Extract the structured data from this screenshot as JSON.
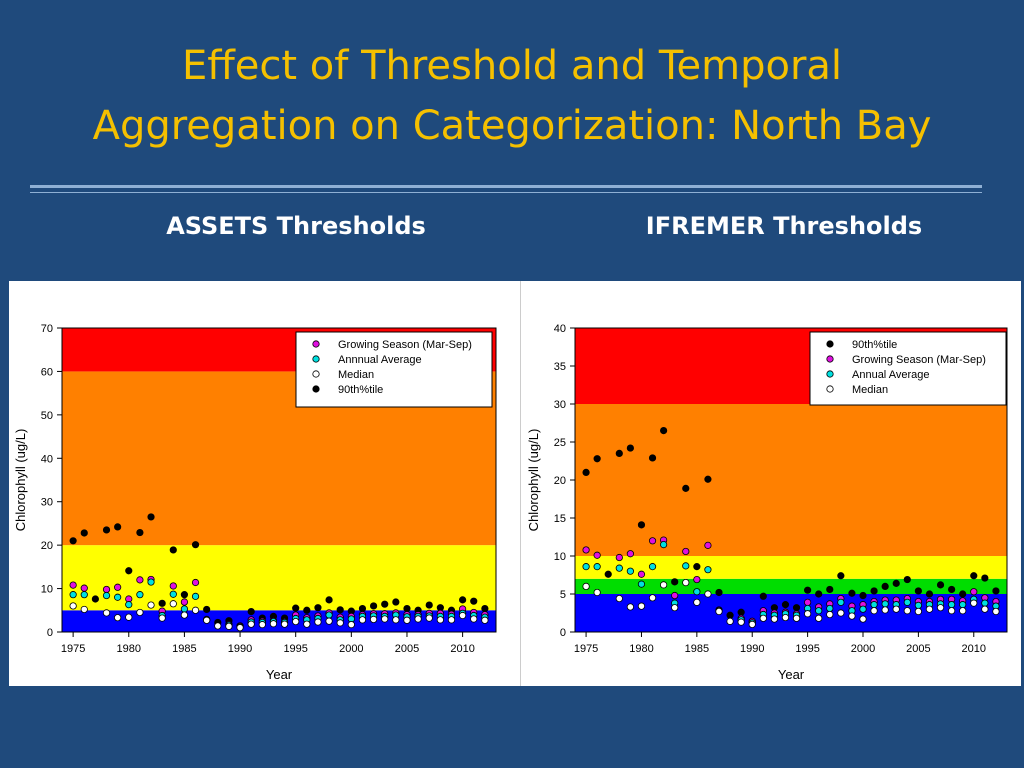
{
  "slide": {
    "title_line1": "Effect of Threshold and Temporal",
    "title_line2": "Aggregation on Categorization: North Bay",
    "heading_left": "ASSETS Thresholds",
    "heading_right": "IFREMER Thresholds"
  },
  "colors": {
    "title": "#f5c000",
    "band_red": "#ff0000",
    "band_orange": "#ff8000",
    "band_yellow": "#ffff00",
    "band_green": "#00dd00",
    "band_blue": "#0000ff",
    "growing": "#e010e0",
    "annual": "#00e0e0",
    "median": "#ffffff",
    "p90": "#000000"
  },
  "chart_data": [
    {
      "type": "scatter",
      "name": "assets",
      "heading": "ASSETS Thresholds",
      "xlabel": "Year",
      "ylabel": "Chlorophyll (ug/L)",
      "xlim": [
        1974,
        2013
      ],
      "ylim": [
        0,
        70
      ],
      "xticks": [
        1975,
        1980,
        1985,
        1990,
        1995,
        2000,
        2005,
        2010
      ],
      "yticks": [
        0,
        10,
        20,
        30,
        40,
        50,
        60,
        70
      ],
      "bands": [
        {
          "from": 0,
          "to": 5,
          "color": "band_blue"
        },
        {
          "from": 5,
          "to": 20,
          "color": "band_yellow"
        },
        {
          "from": 20,
          "to": 60,
          "color": "band_orange"
        },
        {
          "from": 60,
          "to": 70,
          "color": "band_red"
        }
      ],
      "legend_position": "top-right",
      "series": [
        {
          "key": "growing",
          "name": "Growing Season (Mar-Sep)",
          "color": "growing"
        },
        {
          "key": "annual",
          "name": "Annnual Average",
          "color": "annual"
        },
        {
          "key": "median",
          "name": "Median",
          "color": "median"
        },
        {
          "key": "p90",
          "name": "90th%tile",
          "color": "p90"
        }
      ]
    },
    {
      "type": "scatter",
      "name": "ifremer",
      "heading": "IFREMER Thresholds",
      "xlabel": "Year",
      "ylabel": "Chlorophyll (ug/L)",
      "xlim": [
        1974,
        2013
      ],
      "ylim": [
        0,
        40
      ],
      "xticks": [
        1975,
        1980,
        1985,
        1990,
        1995,
        2000,
        2005,
        2010
      ],
      "yticks": [
        0,
        5,
        10,
        15,
        20,
        25,
        30,
        35,
        40
      ],
      "bands": [
        {
          "from": 0,
          "to": 5,
          "color": "band_blue"
        },
        {
          "from": 5,
          "to": 7,
          "color": "band_green"
        },
        {
          "from": 7,
          "to": 10,
          "color": "band_yellow"
        },
        {
          "from": 10,
          "to": 30,
          "color": "band_orange"
        },
        {
          "from": 30,
          "to": 40,
          "color": "band_red"
        }
      ],
      "legend_position": "top-right",
      "series": [
        {
          "key": "p90",
          "name": "90th%tile",
          "color": "p90"
        },
        {
          "key": "growing",
          "name": "Growing Season (Mar-Sep)",
          "color": "growing"
        },
        {
          "key": "annual",
          "name": "Annual Average",
          "color": "annual"
        },
        {
          "key": "median",
          "name": "Median",
          "color": "median"
        }
      ]
    }
  ],
  "series_values": {
    "years": [
      1975,
      1976,
      1977,
      1978,
      1979,
      1980,
      1981,
      1982,
      1983,
      1984,
      1985,
      1986,
      1987,
      1988,
      1989,
      1990,
      1991,
      1992,
      1993,
      1994,
      1995,
      1996,
      1997,
      1998,
      1999,
      2000,
      2001,
      2002,
      2003,
      2004,
      2005,
      2006,
      2007,
      2008,
      2009,
      2010,
      2011,
      2012
    ],
    "p90": [
      21,
      22.8,
      7.6,
      23.5,
      24.2,
      14.1,
      22.9,
      26.5,
      6.6,
      18.9,
      8.6,
      20.1,
      5.2,
      2.2,
      2.6,
      1.4,
      4.7,
      3.2,
      3.6,
      3.2,
      5.5,
      5.0,
      5.6,
      7.4,
      5.1,
      4.8,
      5.4,
      6.0,
      6.4,
      6.9,
      5.4,
      5.0,
      6.2,
      5.6,
      5.0,
      7.4,
      7.1,
      5.4
    ],
    "growing": [
      10.8,
      10.1,
      null,
      9.8,
      10.3,
      7.6,
      12.0,
      12.1,
      4.8,
      10.6,
      6.9,
      11.4,
      2.9,
      null,
      1.8,
      1.4,
      2.8,
      2.5,
      2.6,
      2.4,
      3.9,
      3.3,
      3.7,
      4.4,
      3.4,
      3.6,
      4.0,
      4.2,
      4.2,
      4.4,
      4.0,
      4.0,
      4.3,
      4.3,
      4.1,
      5.3,
      4.5,
      4.0
    ],
    "annual": [
      8.6,
      8.6,
      null,
      8.4,
      8.0,
      6.3,
      8.6,
      11.5,
      3.8,
      8.7,
      5.3,
      8.2,
      2.8,
      null,
      1.6,
      1.2,
      2.3,
      2.2,
      2.4,
      2.2,
      3.1,
      2.8,
      3.1,
      3.9,
      2.8,
      3.0,
      3.6,
      3.7,
      3.6,
      3.9,
      3.5,
      3.6,
      3.7,
      3.6,
      3.6,
      4.3,
      3.8,
      3.4
    ],
    "median": [
      6.0,
      5.2,
      null,
      4.4,
      3.3,
      3.4,
      4.5,
      6.2,
      3.2,
      6.5,
      3.9,
      5.0,
      2.7,
      1.4,
      1.3,
      1.0,
      1.8,
      1.7,
      1.9,
      1.8,
      2.4,
      1.8,
      2.3,
      2.5,
      2.1,
      1.7,
      2.8,
      2.9,
      3.0,
      2.8,
      2.7,
      3.0,
      3.2,
      2.8,
      2.8,
      3.8,
      3.0,
      2.7
    ]
  }
}
